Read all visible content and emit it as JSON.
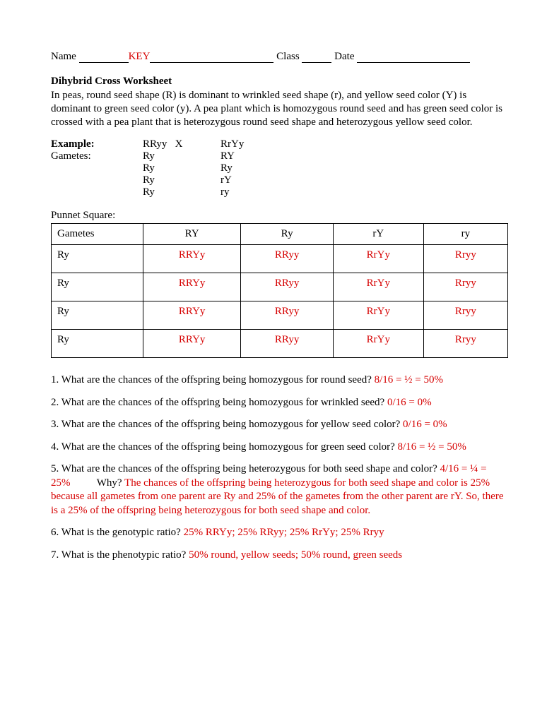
{
  "header": {
    "name_label": "Name",
    "key": "KEY",
    "class_label": "Class",
    "date_label": "Date"
  },
  "title": "Dihybrid Cross Worksheet",
  "intro": "In peas, round seed shape (R) is dominant to wrinkled seed shape (r), and yellow seed color (Y) is dominant to green seed color (y). A pea plant which is homozygous round seed and has green seed color is crossed with a pea plant that is heterozygous round seed shape and heterozygous yellow seed color.",
  "example": {
    "label": "Example:",
    "gametes_label": "Gametes:",
    "cross_left": "RRyy",
    "cross_x": "X",
    "cross_right": "RrYy",
    "left_g": [
      "Ry",
      "Ry",
      "Ry",
      "Ry"
    ],
    "right_g": [
      "RY",
      "Ry",
      "rY",
      "ry"
    ]
  },
  "punnett": {
    "label": "Punnet Square:",
    "corner": "Gametes",
    "cols": [
      "RY",
      "Ry",
      "rY",
      "ry"
    ],
    "rows": [
      {
        "head": "Ry",
        "cells": [
          "RRYy",
          "RRyy",
          "RrYy",
          "Rryy"
        ]
      },
      {
        "head": "Ry",
        "cells": [
          "RRYy",
          "RRyy",
          "RrYy",
          "Rryy"
        ]
      },
      {
        "head": "Ry",
        "cells": [
          "RRYy",
          "RRyy",
          "RrYy",
          "Rryy"
        ]
      },
      {
        "head": "Ry",
        "cells": [
          "RRYy",
          "RRyy",
          "RrYy",
          "Rryy"
        ]
      }
    ]
  },
  "questions": {
    "q1": {
      "q": "1. What are the chances of the offspring being homozygous for round seed? ",
      "a": "8/16 = ½ = 50%"
    },
    "q2": {
      "q": "2. What are the chances of the offspring being homozygous for wrinkled seed? ",
      "a": "0/16 = 0%"
    },
    "q3": {
      "q": "3. What are the chances of the offspring being homozygous for yellow seed color? ",
      "a": "0/16 = 0%"
    },
    "q4": {
      "q": "4. What are the chances of the offspring being homozygous for green seed color? ",
      "a": "8/16 = ½ = 50%"
    },
    "q5": {
      "q_part1": "5. What are the chances of the offspring being heterozygous for both seed shape and color? ",
      "a1": "4/16 = ¼ = 25%",
      "why": "Why? ",
      "a2": "The chances of the offspring being heterozygous for both seed shape and color is 25% because all gametes from one parent are Ry and 25% of the gametes from the other parent are rY.  So, there is a 25% of the offspring being heterozygous for both seed shape and color."
    },
    "q6": {
      "q": "6. What is the genotypic ratio? ",
      "a": "25% RRYy; 25% RRyy; 25% RrYy; 25% Rryy"
    },
    "q7": {
      "q": "7. What is the phenotypic ratio? ",
      "a": "50% round, yellow seeds; 50% round, green seeds"
    }
  },
  "style": {
    "answer_color": "#d60000",
    "text_color": "#000000",
    "background": "#ffffff",
    "font_family": "Times New Roman",
    "base_font_size_pt": 12
  }
}
